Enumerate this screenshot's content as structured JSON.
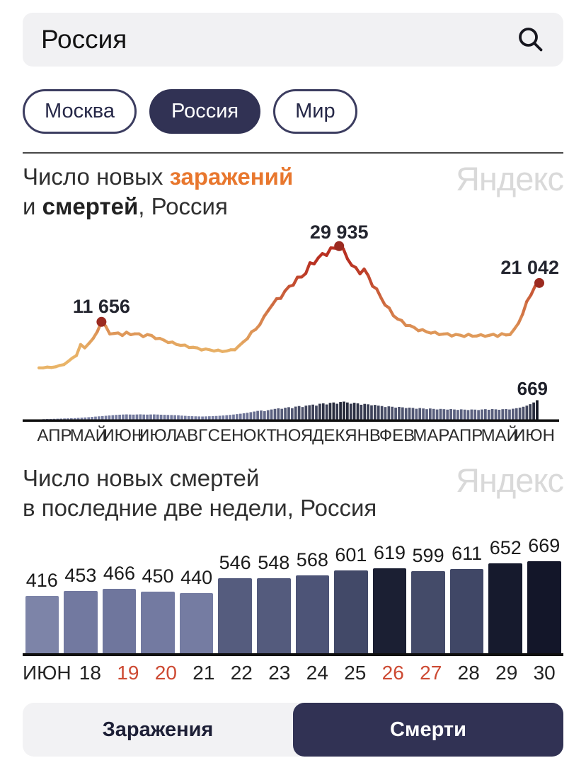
{
  "search": {
    "value": "Россия"
  },
  "chips": [
    {
      "label": "Москва",
      "selected": false
    },
    {
      "label": "Россия",
      "selected": true
    },
    {
      "label": "Мир",
      "selected": false
    }
  ],
  "watermark": "Яндекс",
  "chart1": {
    "title": {
      "p1": "Число новых ",
      "p2": "заражений",
      "p3": "и ",
      "p4": "смертей",
      "p5": ", Россия"
    }
  },
  "chart2": {
    "title": {
      "line1": "Число новых смертей",
      "line2": "в последние две недели, Россия"
    }
  },
  "toggle": {
    "options": [
      {
        "label": "Заражения",
        "active": false
      },
      {
        "label": "Смерти",
        "active": true
      }
    ]
  },
  "colors": {
    "accent_orange": "#e8772e",
    "dark_navy": "#313254",
    "line_low": "#e9b468",
    "line_high": "#b93122",
    "peak_dot": "#9b2a20",
    "mini_bar_low": "#7a81a7",
    "mini_bar_high": "#131623",
    "axis_black": "#101010",
    "red_tick": "#cd4a33",
    "watermark_gray": "#d9d9d9"
  },
  "chart_data": [
    {
      "type": "line",
      "title": "Число новых заражений и смертей, Россия",
      "legend_position": "none",
      "grid": false,
      "ylim": [
        0,
        31000
      ],
      "x_axis_months": [
        "АПР",
        "МАЙ",
        "ИЮН",
        "ИЮЛ",
        "АВГ",
        "СЕН",
        "ОКТ",
        "НОЯ",
        "ДЕК",
        "ЯНВ",
        "ФЕВ",
        "МАР",
        "АПР",
        "МАЙ",
        "ИЮН"
      ],
      "line_series": {
        "name": "Заражения",
        "values": [
          550,
          620,
          640,
          700,
          820,
          1050,
          1450,
          2050,
          2850,
          3700,
          6000,
          5400,
          6600,
          7400,
          9500,
          11656,
          10400,
          9000,
          8700,
          8900,
          8600,
          8900,
          8650,
          8900,
          8500,
          8300,
          8550,
          8200,
          7850,
          7500,
          7200,
          6850,
          6550,
          6300,
          6050,
          5850,
          5650,
          5450,
          5250,
          5050,
          4950,
          4900,
          4750,
          4650,
          4600,
          4650,
          4750,
          5100,
          5800,
          6700,
          7850,
          9000,
          9900,
          11200,
          12600,
          14700,
          15800,
          16900,
          17800,
          18800,
          20100,
          21000,
          21900,
          22700,
          23600,
          25300,
          26200,
          27000,
          27700,
          28400,
          29000,
          29400,
          29935,
          28600,
          27200,
          25500,
          24200,
          23800,
          24200,
          22500,
          20800,
          19200,
          17600,
          16000,
          14600,
          13400,
          12400,
          11700,
          11100,
          10600,
          10200,
          9800,
          9500,
          9300,
          9100,
          8900,
          8800,
          8700,
          8600,
          8500,
          8450,
          8400,
          8350,
          8400,
          8300,
          8350,
          8300,
          8400,
          8350,
          8500,
          8400,
          8600,
          8500,
          8800,
          9600,
          11500,
          13600,
          16200,
          18600,
          20100,
          21042
        ]
      },
      "line_annotations": [
        {
          "index": 15,
          "value": 11656,
          "label": "11 656",
          "anchor": "middle",
          "dy": -13
        },
        {
          "index": 72,
          "value": 29935,
          "label": "29 935",
          "anchor": "middle",
          "dy": -11
        },
        {
          "index": 120,
          "value": 21042,
          "label": "21 042",
          "anchor": "end",
          "dy": -13
        }
      ],
      "bar_series": {
        "name": "Смерти",
        "values": [
          8,
          12,
          15,
          18,
          22,
          26,
          30,
          34,
          38,
          42,
          50,
          58,
          66,
          74,
          85,
          96,
          105,
          115,
          125,
          135,
          145,
          155,
          162,
          168,
          172,
          168,
          165,
          170,
          174,
          168,
          165,
          170,
          172,
          168,
          162,
          158,
          154,
          150,
          146,
          142,
          130,
          122,
          115,
          110,
          106,
          102,
          100,
          104,
          108,
          112,
          118,
          125,
          134,
          144,
          155,
          168,
          182,
          196,
          212,
          230,
          250,
          272,
          295,
          310,
          287,
          320,
          345,
          365,
          385,
          368,
          405,
          425,
          390,
          445,
          465,
          430,
          480,
          495,
          515,
          480,
          545,
          560,
          520,
          575,
          590,
          545,
          605,
          620,
          590,
          545,
          580,
          560,
          510,
          540,
          525,
          490,
          505,
          480,
          465,
          430,
          455,
          440,
          410,
          435,
          420,
          395,
          410,
          400,
          370,
          395,
          380,
          355,
          380,
          365,
          345,
          365,
          355,
          340,
          360,
          345,
          330,
          350,
          340,
          325,
          345,
          340,
          325,
          345,
          355,
          335,
          360,
          350,
          335,
          355,
          360,
          345,
          370,
          390,
          410,
          440,
          480,
          530,
          590,
          669
        ],
        "annotation": {
          "label": "669",
          "value": 669
        }
      }
    },
    {
      "type": "bar",
      "title": "Число новых смертей в последние две недели, Россия",
      "grid": false,
      "ylim": [
        0,
        700
      ],
      "categories": [
        "ИЮН",
        "18",
        "19",
        "20",
        "21",
        "22",
        "23",
        "24",
        "25",
        "26",
        "27",
        "28",
        "29",
        "30"
      ],
      "values": [
        416,
        453,
        466,
        450,
        440,
        546,
        548,
        568,
        601,
        619,
        599,
        611,
        652,
        669
      ],
      "bar_colors": [
        "#7d84a8",
        "#7279a0",
        "#6f769d",
        "#737aa1",
        "#757ca2",
        "#555c7e",
        "#545b7d",
        "#4d5477",
        "#424968",
        "#1b1f33",
        "#444b69",
        "#404766",
        "#161a2d",
        "#131629"
      ],
      "highlighted_categories": [
        "19",
        "20",
        "26",
        "27"
      ],
      "highlight_color": "#cd4a33"
    }
  ]
}
